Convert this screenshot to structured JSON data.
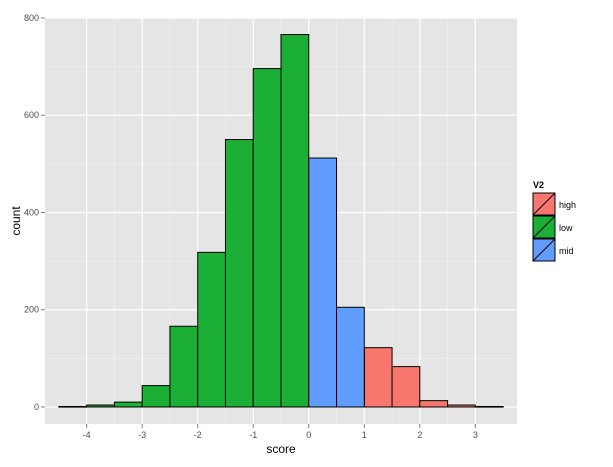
{
  "chart_data": {
    "type": "bar",
    "title": "",
    "xlabel": "score",
    "ylabel": "count",
    "xlim": [
      -4.75,
      3.75
    ],
    "ylim": [
      -35,
      800
    ],
    "x_ticks": [
      -4,
      -3,
      -2,
      -1,
      0,
      1,
      2,
      3
    ],
    "y_ticks": [
      0,
      200,
      400,
      600,
      800
    ],
    "grid": true,
    "legend_position": "right",
    "legend_title": "V2",
    "bin_width": 0.5,
    "series": [
      {
        "name": "high",
        "color": "#F8766D",
        "bins": [
          {
            "x0": 1.0,
            "x1": 1.5,
            "count": 122
          },
          {
            "x0": 1.5,
            "x1": 2.0,
            "count": 83
          },
          {
            "x0": 2.0,
            "x1": 2.5,
            "count": 13
          },
          {
            "x0": 2.5,
            "x1": 3.0,
            "count": 4
          },
          {
            "x0": 3.0,
            "x1": 3.5,
            "count": 1
          }
        ]
      },
      {
        "name": "low",
        "color": "#1CAF35",
        "bins": [
          {
            "x0": -4.5,
            "x1": -4.0,
            "count": 1
          },
          {
            "x0": -4.0,
            "x1": -3.5,
            "count": 4
          },
          {
            "x0": -3.5,
            "x1": -3.0,
            "count": 10
          },
          {
            "x0": -3.0,
            "x1": -2.5,
            "count": 44
          },
          {
            "x0": -2.5,
            "x1": -2.0,
            "count": 166
          },
          {
            "x0": -2.0,
            "x1": -1.5,
            "count": 318
          },
          {
            "x0": -1.5,
            "x1": -1.0,
            "count": 550
          },
          {
            "x0": -1.0,
            "x1": -0.5,
            "count": 696
          },
          {
            "x0": -0.5,
            "x1": 0.0,
            "count": 766
          }
        ]
      },
      {
        "name": "mid",
        "color": "#619CFF",
        "bins": [
          {
            "x0": 0.0,
            "x1": 0.5,
            "count": 512
          },
          {
            "x0": 0.5,
            "x1": 1.0,
            "count": 205
          }
        ]
      }
    ]
  }
}
